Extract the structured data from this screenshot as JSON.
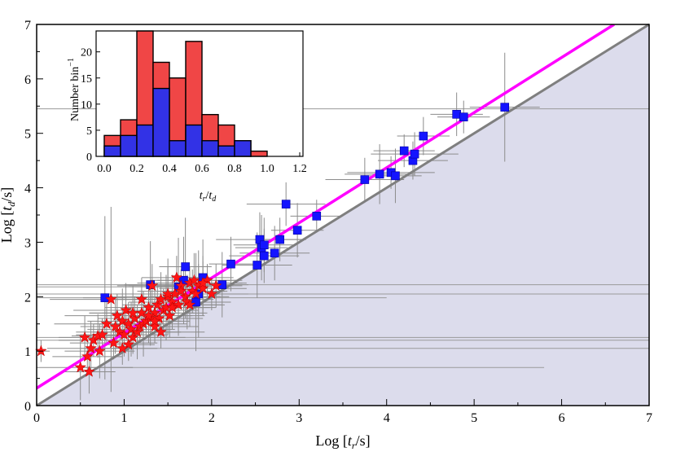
{
  "chart_data": [
    {
      "type": "scatter",
      "xlabel": "Log [t_r/s]",
      "ylabel": "Log [t_d/s]",
      "xlim": [
        0,
        7
      ],
      "ylim": [
        0,
        7
      ],
      "xticks": [
        "0",
        "1",
        "2",
        "3",
        "4",
        "5",
        "6",
        "7"
      ],
      "yticks": [
        "0",
        "1",
        "2",
        "3",
        "4",
        "5",
        "6",
        "7"
      ],
      "grid": false,
      "legend": "none",
      "lines": [
        {
          "kind": "equality",
          "x": [
            0,
            7
          ],
          "y": [
            0,
            7
          ],
          "color": "#7f7f7f"
        },
        {
          "kind": "fit",
          "x": [
            0,
            6.6
          ],
          "y": [
            0.32,
            7.0
          ],
          "color": "#ff00ff"
        }
      ],
      "shaded_region": {
        "below": "equality",
        "color": "#dcdcec"
      },
      "series": [
        {
          "marker": "square",
          "color": "#1414ff",
          "x": [
            0.78,
            1.3,
            1.62,
            1.68,
            1.7,
            1.82,
            1.85,
            1.9,
            2.12,
            2.22,
            2.52,
            2.55,
            2.57,
            2.6,
            2.6,
            2.72,
            2.78,
            2.85,
            2.98,
            3.2,
            3.75,
            3.92,
            4.05,
            4.1,
            4.2,
            4.3,
            4.32,
            4.42,
            4.8,
            4.88,
            5.35
          ],
          "y": [
            1.98,
            2.22,
            2.18,
            2.3,
            2.55,
            1.9,
            2.05,
            2.35,
            2.22,
            2.6,
            2.58,
            3.05,
            2.9,
            2.75,
            2.95,
            2.8,
            3.05,
            3.7,
            3.22,
            3.48,
            4.15,
            4.25,
            4.28,
            4.22,
            4.68,
            4.5,
            4.62,
            4.95,
            5.35,
            5.3,
            5.48
          ],
          "xerr": [
            0.25,
            0.3,
            0.25,
            0.3,
            0.3,
            0.25,
            0.3,
            0.35,
            0.3,
            0.25,
            0.4,
            0.5,
            0.3,
            0.4,
            0.35,
            0.4,
            0.3,
            0.45,
            0.3,
            0.3,
            0.45,
            0.4,
            0.5,
            0.3,
            0.35,
            0.4,
            0.5,
            0.3,
            0.3,
            0.3,
            0.4
          ],
          "yerr": [
            1.5,
            0.8,
            0.9,
            0.8,
            0.9,
            0.9,
            0.8,
            0.7,
            0.6,
            0.5,
            0.6,
            0.5,
            0.6,
            0.5,
            0.5,
            0.5,
            0.4,
            0.4,
            0.5,
            0.3,
            0.4,
            0.55,
            0.3,
            0.5,
            0.3,
            0.35,
            0.4,
            0.35,
            0.4,
            0.3,
            1.0
          ]
        },
        {
          "marker": "star",
          "color": "#ff1414",
          "x": [
            0.05,
            0.5,
            0.55,
            0.58,
            0.6,
            0.62,
            0.65,
            0.7,
            0.72,
            0.75,
            0.8,
            0.85,
            0.88,
            0.9,
            0.92,
            0.95,
            0.98,
            1.0,
            1.02,
            1.05,
            1.05,
            1.08,
            1.1,
            1.12,
            1.15,
            1.18,
            1.2,
            1.22,
            1.25,
            1.28,
            1.3,
            1.32,
            1.35,
            1.35,
            1.38,
            1.4,
            1.42,
            1.45,
            1.48,
            1.5,
            1.52,
            1.55,
            1.58,
            1.6,
            1.62,
            1.65,
            1.7,
            1.72,
            1.75,
            1.78,
            1.8,
            1.82,
            1.85,
            1.9,
            1.95,
            2.05,
            1.28,
            1.35,
            1.42,
            1.5,
            1.55,
            0.98,
            1.1,
            1.2,
            1.65,
            1.75,
            1.9,
            2.0
          ],
          "y": [
            1.0,
            0.7,
            1.25,
            0.9,
            0.62,
            1.05,
            1.2,
            1.28,
            1.0,
            1.3,
            1.5,
            1.95,
            1.15,
            1.45,
            1.65,
            1.35,
            1.55,
            1.3,
            1.75,
            1.12,
            1.5,
            1.4,
            1.25,
            1.6,
            1.35,
            1.45,
            1.7,
            1.5,
            1.55,
            1.8,
            1.6,
            2.2,
            1.45,
            1.7,
            1.85,
            1.6,
            1.95,
            1.75,
            1.8,
            2.0,
            1.65,
            1.9,
            2.05,
            2.35,
            1.85,
            2.2,
            2.0,
            1.9,
            2.25,
            2.1,
            2.3,
            2.05,
            2.2,
            2.15,
            2.3,
            2.2,
            1.65,
            1.55,
            1.35,
            2.05,
            1.8,
            1.05,
            1.7,
            1.95,
            2.1,
            1.85,
            2.25,
            2.05
          ],
          "xerr": [
            0.1,
            0.6,
            0.3,
            0.4,
            0.3,
            0.5,
            0.4,
            0.3,
            0.4,
            0.3,
            0.6,
            0.7,
            0.5,
            0.4,
            0.6,
            0.5,
            0.4,
            0.5,
            0.6,
            0.3,
            0.4,
            0.5,
            0.6,
            0.4,
            0.5,
            0.4,
            0.6,
            0.5,
            0.4,
            0.5,
            0.6,
            0.4,
            0.5,
            0.6,
            0.4,
            0.5,
            0.6,
            0.4,
            0.5,
            0.7,
            0.4,
            0.5,
            0.6,
            0.4,
            0.5,
            0.6,
            0.4,
            0.5,
            0.6,
            0.4,
            0.5,
            0.6,
            0.4,
            0.5,
            0.4,
            0.3,
            0.5,
            0.4,
            0.5,
            0.6,
            0.5,
            0.4,
            0.5,
            0.4,
            0.5,
            0.4,
            0.5,
            0.4
          ],
          "yerr": [
            0.2,
            0.6,
            0.4,
            0.3,
            0.4,
            0.5,
            0.3,
            0.4,
            0.5,
            0.3,
            0.4,
            1.7,
            0.3,
            0.5,
            0.4,
            0.3,
            0.6,
            0.4,
            0.5,
            0.3,
            0.4,
            0.5,
            0.3,
            0.4,
            0.5,
            0.3,
            0.4,
            0.6,
            0.3,
            0.4,
            0.5,
            0.4,
            0.3,
            0.5,
            0.4,
            0.3,
            0.5,
            0.4,
            0.6,
            0.7,
            0.4,
            0.5,
            0.3,
            0.4,
            0.5,
            0.3,
            0.4,
            0.5,
            0.3,
            0.4,
            0.5,
            0.3,
            0.4,
            0.5,
            0.3,
            0.4,
            0.5,
            0.4,
            0.3,
            0.5,
            0.4,
            0.3,
            0.5,
            0.4,
            0.3,
            0.4,
            0.5,
            0.3
          ]
        }
      ],
      "long_xerr_rows": [
        {
          "y": 2.22,
          "x0": 0.0,
          "x1": 7.0
        },
        {
          "y": 2.18,
          "x0": 0.0,
          "x1": 2.0
        },
        {
          "y": 2.05,
          "x0": 0.0,
          "x1": 7.0
        },
        {
          "y": 1.98,
          "x0": 0.0,
          "x1": 4.0
        },
        {
          "y": 1.25,
          "x0": 0.0,
          "x1": 7.0
        },
        {
          "y": 1.2,
          "x0": 0.0,
          "x1": 7.0
        },
        {
          "y": 1.05,
          "x0": 0.5,
          "x1": 7.0
        },
        {
          "y": 0.7,
          "x0": 0.5,
          "x1": 5.8
        },
        {
          "y": 5.45,
          "x0": 0.0,
          "x1": 7.0
        }
      ]
    },
    {
      "type": "bar",
      "xlabel": "t_r/t_d",
      "ylabel": "Number bin^-1",
      "xlim": [
        -0.05,
        1.22
      ],
      "ylim": [
        0,
        24
      ],
      "xticks": [
        "0.0",
        "0.2",
        "0.4",
        "0.6",
        "0.8",
        "1.0",
        "1.2"
      ],
      "yticks": [
        "0",
        "5",
        "10",
        "15",
        "20"
      ],
      "bin_edges": [
        0.0,
        0.1,
        0.2,
        0.3,
        0.4,
        0.5,
        0.6,
        0.7,
        0.8,
        0.9,
        1.0,
        1.05
      ],
      "series": [
        {
          "color": "#f04646",
          "values": [
            4,
            7,
            24,
            18,
            15,
            22,
            8,
            6,
            3,
            1
          ]
        },
        {
          "color": "#3232e6",
          "values": [
            2,
            4,
            6,
            13,
            3,
            6,
            3,
            2,
            3,
            0
          ]
        }
      ]
    }
  ]
}
